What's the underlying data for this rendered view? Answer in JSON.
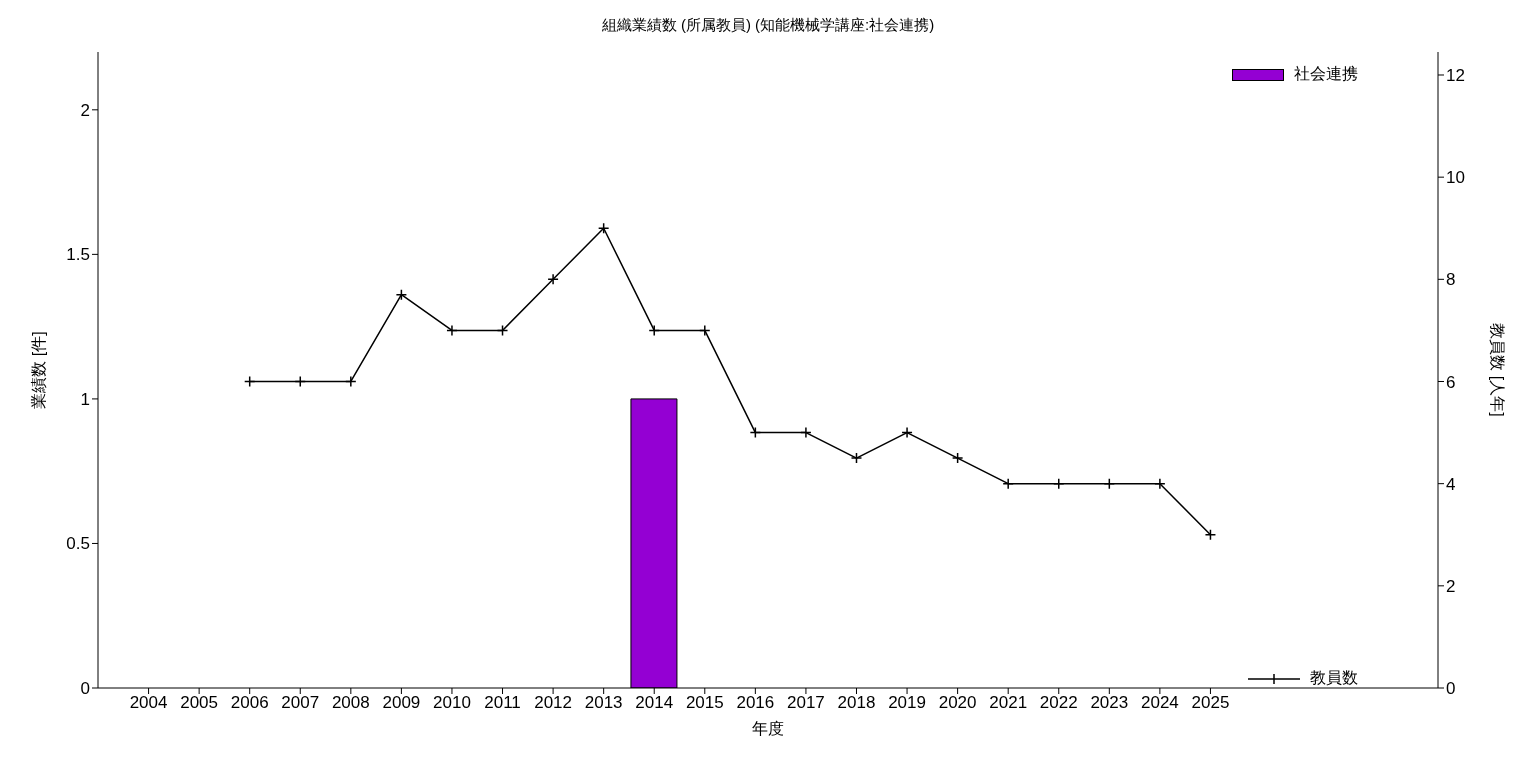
{
  "chart_data": {
    "type": "bar",
    "title": "組織業績数 (所属教員) (知能機械学講座:社会連携)",
    "xlabel": "年度",
    "ylabel": "業績数 [件]",
    "y2label": "教員数 [人年]",
    "xlim": [
      2003,
      2029.5
    ],
    "xticks": [
      2004,
      2005,
      2006,
      2007,
      2008,
      2009,
      2010,
      2011,
      2012,
      2013,
      2014,
      2015,
      2016,
      2017,
      2018,
      2019,
      2020,
      2021,
      2022,
      2023,
      2024,
      2025
    ],
    "ylim": [
      0,
      2.2
    ],
    "yticks": [
      0,
      0.5,
      1,
      1.5,
      2
    ],
    "y2lim": [
      0,
      12.45
    ],
    "y2ticks": [
      0,
      2,
      4,
      6,
      8,
      10,
      12
    ],
    "series": [
      {
        "name": "社会連携",
        "color": "#9400d3",
        "x": [
          2014
        ],
        "values": [
          1
        ]
      },
      {
        "name": "教員数",
        "type": "line",
        "axis": "y2",
        "color": "#000000",
        "marker": "cross",
        "x": [
          2006,
          2007,
          2008,
          2009,
          2010,
          2011,
          2012,
          2013,
          2014,
          2015,
          2016,
          2017,
          2018,
          2019,
          2020,
          2021,
          2022,
          2023,
          2024,
          2025
        ],
        "values": [
          6,
          6,
          6,
          7.7,
          7,
          7,
          8,
          9,
          7,
          7,
          5,
          5,
          4.5,
          5,
          4.5,
          4,
          4,
          4,
          4,
          3
        ]
      }
    ],
    "legend": "right"
  }
}
